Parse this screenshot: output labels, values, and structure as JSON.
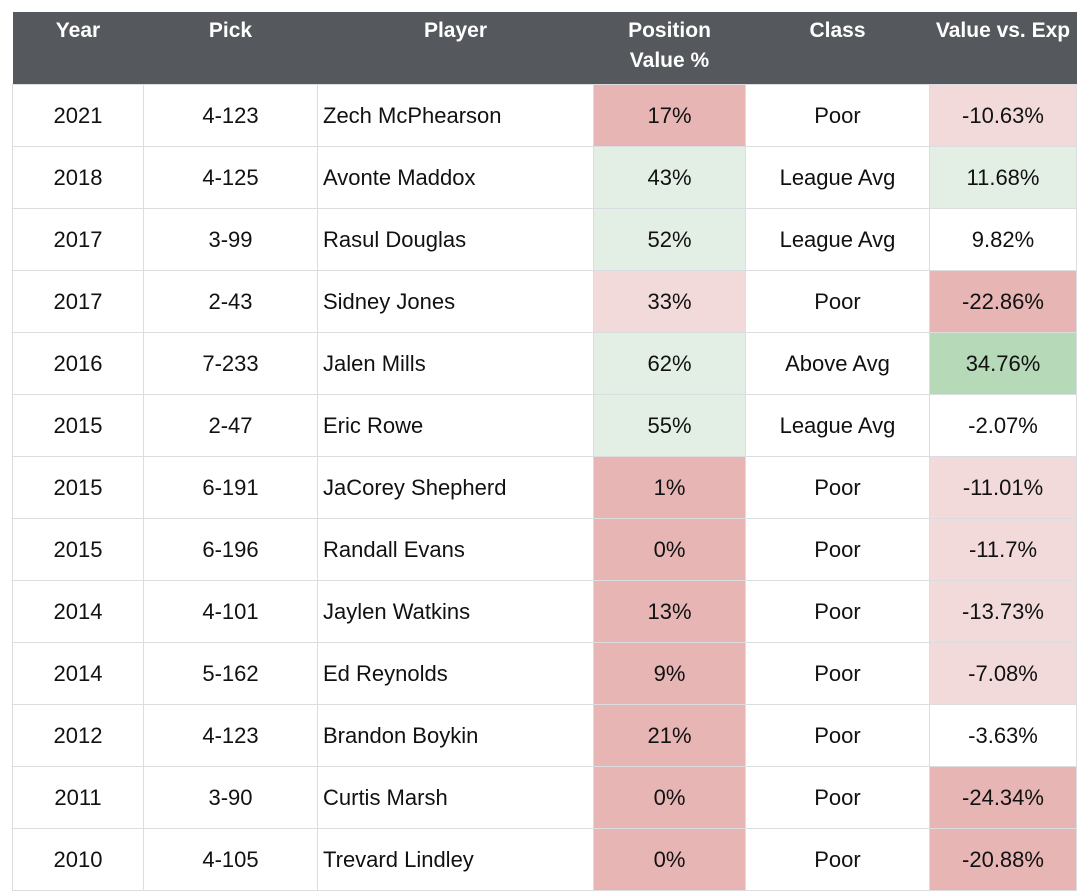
{
  "table": {
    "header": [
      "Year",
      "Pick",
      "Player",
      "Position Value %",
      "Class",
      "Value vs. Exp"
    ],
    "rows": [
      [
        "2021",
        "4-123",
        "Zech McPhearson",
        "17%",
        "Poor",
        "-10.63%"
      ],
      [
        "2018",
        "4-125",
        "Avonte Maddox",
        "43%",
        "League Avg",
        "11.68%"
      ],
      [
        "2017",
        "3-99",
        "Rasul Douglas",
        "52%",
        "League Avg",
        "9.82%"
      ],
      [
        "2017",
        "2-43",
        "Sidney Jones",
        "33%",
        "Poor",
        "-22.86%"
      ],
      [
        "2016",
        "7-233",
        "Jalen Mills",
        "62%",
        "Above Avg",
        "34.76%"
      ],
      [
        "2015",
        "2-47",
        "Eric Rowe",
        "55%",
        "League Avg",
        "-2.07%"
      ],
      [
        "2015",
        "6-191",
        "JaCorey Shepherd",
        "1%",
        "Poor",
        "-11.01%"
      ],
      [
        "2015",
        "6-196",
        "Randall Evans",
        "0%",
        "Poor",
        "-11.7%"
      ],
      [
        "2014",
        "4-101",
        "Jaylen Watkins",
        "13%",
        "Poor",
        "-13.73%"
      ],
      [
        "2014",
        "5-162",
        "Ed Reynolds",
        "9%",
        "Poor",
        "-7.08%"
      ],
      [
        "2012",
        "4-123",
        "Brandon Boykin",
        "21%",
        "Poor",
        "-3.63%"
      ],
      [
        "2011",
        "3-90",
        "Curtis Marsh",
        "0%",
        "Poor",
        "-24.34%"
      ],
      [
        "2010",
        "4-105",
        "Trevard Lindley",
        "0%",
        "Poor",
        "-20.88%"
      ]
    ],
    "position_colors": [
      "#e8b5b5",
      "#e3efe5",
      "#e3efe5",
      "#f2dadb",
      "#e3efe5",
      "#e3efe5",
      "#e8b5b5",
      "#e8b5b5",
      "#e8b5b5",
      "#e8b5b5",
      "#e8b5b5",
      "#e8b5b5",
      "#e8b5b5"
    ],
    "exp_colors": [
      "#f2dadb",
      "#e3efe5",
      "#ffffff",
      "#e8b5b5",
      "#b6d9b8",
      "#ffffff",
      "#f2dadb",
      "#f2dadb",
      "#f2dadb",
      "#f2dadb",
      "#ffffff",
      "#e8b5b5",
      "#e8b5b5"
    ]
  }
}
